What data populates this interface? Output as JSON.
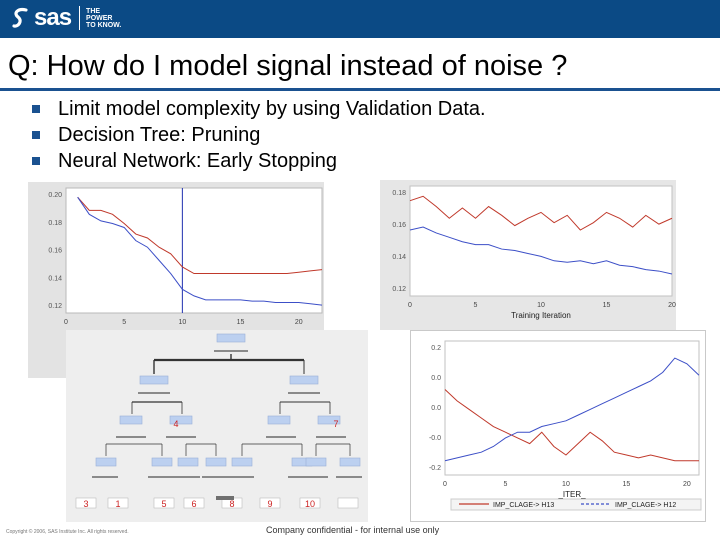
{
  "header": {
    "logo_text": "sas",
    "tagline": [
      "THE",
      "POWER",
      "TO KNOW."
    ],
    "background": "#0b4a85"
  },
  "slide": {
    "title": "Q: How do I model signal instead of noise ?",
    "bullets": [
      "Limit model complexity by using Validation Data.",
      "Decision Tree:  Pruning",
      "Neural Network:  Early Stopping"
    ],
    "accent": "#1a5190"
  },
  "footer": {
    "copyright": "Copyright © 2006, SAS Institute Inc. All rights reserved.",
    "confidential": "Company confidential - for internal use only"
  },
  "tree": {
    "node_numbers": [
      "4",
      "7",
      "3",
      "1",
      "5",
      "6",
      "8",
      "9",
      "10"
    ],
    "number_color": "#cc2222",
    "node_fill": "#bcd0f0"
  },
  "chart_data": [
    {
      "type": "line",
      "x": [
        1,
        2,
        3,
        4,
        5,
        6,
        7,
        8,
        9,
        10,
        11,
        12,
        13,
        14,
        15,
        16,
        17,
        18,
        19,
        20,
        21,
        22
      ],
      "xticks": [
        "0",
        "5",
        "10",
        "15",
        "20"
      ],
      "yticks": [
        "0.20",
        "0.18",
        "0.16",
        "0.14",
        "0.12"
      ],
      "ylim": [
        0.11,
        0.205
      ],
      "xlim": [
        0,
        22
      ],
      "vertical_marker": 10,
      "series": [
        {
          "color": "#c0392b",
          "values": [
            0.198,
            0.188,
            0.188,
            0.185,
            0.178,
            0.17,
            0.167,
            0.16,
            0.155,
            0.145,
            0.14,
            0.14,
            0.14,
            0.14,
            0.14,
            0.14,
            0.14,
            0.14,
            0.14,
            0.141,
            0.142,
            0.143
          ]
        },
        {
          "color": "#3c4fc7",
          "values": [
            0.198,
            0.185,
            0.18,
            0.178,
            0.175,
            0.165,
            0.16,
            0.15,
            0.14,
            0.128,
            0.123,
            0.12,
            0.12,
            0.12,
            0.12,
            0.119,
            0.119,
            0.118,
            0.118,
            0.118,
            0.117,
            0.116
          ]
        }
      ]
    },
    {
      "type": "line",
      "x": [
        0,
        1,
        2,
        3,
        4,
        5,
        6,
        7,
        8,
        9,
        10,
        11,
        12,
        13,
        14,
        15,
        16,
        17,
        18,
        19,
        20
      ],
      "xticks": [
        "0",
        "5",
        "10",
        "15",
        "20"
      ],
      "yticks": [
        "0.18",
        "0.16",
        "0.14",
        "0.12"
      ],
      "ylim": [
        0.115,
        0.19
      ],
      "xlim": [
        0,
        20
      ],
      "xlabel": "Training Iteration",
      "series": [
        {
          "color": "#c0392b",
          "values": [
            0.18,
            0.183,
            0.176,
            0.168,
            0.175,
            0.168,
            0.176,
            0.17,
            0.163,
            0.168,
            0.172,
            0.165,
            0.17,
            0.16,
            0.165,
            0.172,
            0.168,
            0.162,
            0.17,
            0.164,
            0.168
          ]
        },
        {
          "color": "#3c4fc7",
          "values": [
            0.16,
            0.162,
            0.158,
            0.155,
            0.152,
            0.15,
            0.15,
            0.147,
            0.146,
            0.144,
            0.142,
            0.139,
            0.138,
            0.139,
            0.137,
            0.139,
            0.136,
            0.135,
            0.133,
            0.132,
            0.13
          ]
        }
      ]
    },
    {
      "type": "line",
      "x": [
        0,
        1,
        2,
        3,
        4,
        5,
        6,
        7,
        8,
        9,
        10,
        11,
        12,
        13,
        14,
        15,
        16,
        17,
        18,
        19,
        20,
        21
      ],
      "xticks": [
        "0",
        "5",
        "10",
        "15",
        "20"
      ],
      "yticks": [
        "0.2",
        "0.0",
        "0.0",
        "-0.0",
        "-0.2"
      ],
      "ylim": [
        -0.25,
        0.22
      ],
      "xlim": [
        0,
        21
      ],
      "xlabel": "_ITER_",
      "legend": [
        "IMP_CLAGE-> H13",
        "IMP_CLAGE-> H12"
      ],
      "series": [
        {
          "color": "#c0392b",
          "values": [
            0.05,
            0.01,
            -0.02,
            -0.05,
            -0.08,
            -0.1,
            -0.12,
            -0.14,
            -0.1,
            -0.15,
            -0.18,
            -0.14,
            -0.1,
            -0.13,
            -0.17,
            -0.18,
            -0.19,
            -0.18,
            -0.19,
            -0.2,
            -0.2,
            -0.2
          ]
        },
        {
          "color": "#3c4fc7",
          "values": [
            -0.2,
            -0.19,
            -0.18,
            -0.17,
            -0.15,
            -0.12,
            -0.1,
            -0.1,
            -0.08,
            -0.07,
            -0.06,
            -0.04,
            -0.02,
            0.0,
            0.02,
            0.04,
            0.06,
            0.08,
            0.11,
            0.16,
            0.14,
            0.1
          ]
        }
      ]
    }
  ]
}
